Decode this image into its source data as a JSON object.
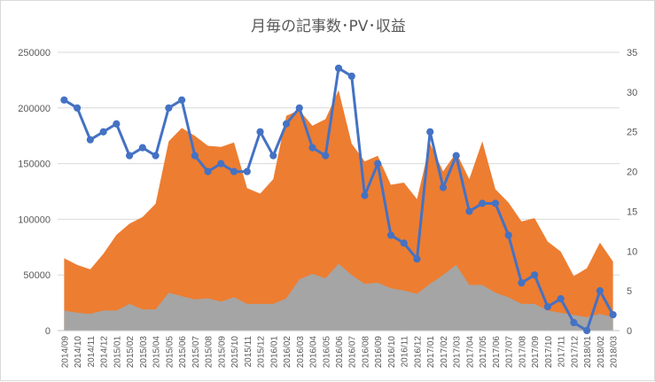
{
  "chart_data": {
    "type": "area",
    "title": "月毎の記事数･PV･収益",
    "categories": [
      "2014/09",
      "2014/10",
      "2014/11",
      "2014/12",
      "2015/01",
      "2015/02",
      "2015/03",
      "2015/04",
      "2015/05",
      "2015/06",
      "2015/07",
      "2015/08",
      "2015/09",
      "2015/10",
      "2015/11",
      "2015/12",
      "2016/01",
      "2016/02",
      "2016/03",
      "2016/04",
      "2016/05",
      "2016/06",
      "2016/07",
      "2016/08",
      "2016/09",
      "2016/10",
      "2016/11",
      "2016/12",
      "2017/01",
      "2017/02",
      "2017/03",
      "2017/04",
      "2017/05",
      "2017/06",
      "2017/07",
      "2017/08",
      "2017/09",
      "2017/10",
      "2017/11",
      "2017/12",
      "2018/01",
      "2018/02",
      "2018/03"
    ],
    "left_axis": {
      "ylim": [
        0,
        250000
      ],
      "ticks": [
        "0",
        "50000",
        "100000",
        "150000",
        "200000",
        "250000"
      ]
    },
    "right_axis": {
      "ylim": [
        0,
        35
      ],
      "ticks": [
        "0",
        "5",
        "10",
        "15",
        "20",
        "25",
        "30",
        "35"
      ]
    },
    "grid": true,
    "legend": "none",
    "series": [
      {
        "kind": "area",
        "axis": "left",
        "color": "#ed7d31",
        "values": [
          65000,
          59000,
          55000,
          69000,
          86000,
          96000,
          102000,
          114000,
          170000,
          182000,
          175000,
          166000,
          165000,
          169000,
          128000,
          123000,
          136000,
          193000,
          198000,
          184000,
          190000,
          216000,
          168000,
          152000,
          157000,
          131000,
          133000,
          118000,
          168000,
          143000,
          160000,
          136000,
          170000,
          127000,
          115000,
          98000,
          101000,
          80000,
          71000,
          49000,
          56000,
          79000,
          62000
        ]
      },
      {
        "kind": "area",
        "axis": "left",
        "color": "#a5a5a5",
        "values": [
          18000,
          16000,
          15000,
          18000,
          18000,
          24000,
          19000,
          19000,
          34000,
          31000,
          28000,
          29000,
          26000,
          30000,
          24000,
          24000,
          24000,
          29000,
          46000,
          51000,
          47000,
          60000,
          50000,
          42000,
          43000,
          38000,
          36000,
          33000,
          42000,
          50000,
          59000,
          41000,
          41000,
          34000,
          30000,
          24000,
          24000,
          18000,
          16000,
          14000,
          12000,
          15000,
          12000
        ]
      },
      {
        "kind": "line",
        "axis": "right",
        "color": "#4472c4",
        "values": [
          29,
          28,
          24,
          25,
          26,
          22,
          23,
          22,
          28,
          29,
          22,
          20,
          21,
          20,
          20,
          25,
          22,
          26,
          28,
          23,
          22,
          33,
          32,
          17,
          21,
          12,
          11,
          9,
          25,
          18,
          22,
          15,
          16,
          16,
          12,
          6,
          7,
          3,
          4,
          1,
          0,
          5,
          2
        ]
      }
    ]
  }
}
